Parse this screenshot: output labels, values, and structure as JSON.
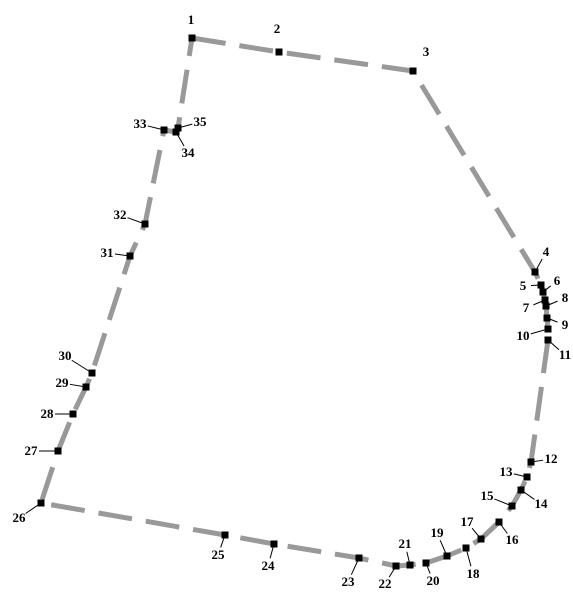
{
  "diagram": {
    "style": {
      "boundary_color": "#999999",
      "vertex_color": "#000000",
      "label_color": "#000000",
      "background": "#ffffff"
    },
    "vertices": [
      {
        "label": "1"
      },
      {
        "label": "2"
      },
      {
        "label": "3"
      },
      {
        "label": "4"
      },
      {
        "label": "5"
      },
      {
        "label": "6"
      },
      {
        "label": "7"
      },
      {
        "label": "8"
      },
      {
        "label": "9"
      },
      {
        "label": "10"
      },
      {
        "label": "11"
      },
      {
        "label": "12"
      },
      {
        "label": "13"
      },
      {
        "label": "14"
      },
      {
        "label": "15"
      },
      {
        "label": "16"
      },
      {
        "label": "17"
      },
      {
        "label": "18"
      },
      {
        "label": "19"
      },
      {
        "label": "20"
      },
      {
        "label": "21"
      },
      {
        "label": "22"
      },
      {
        "label": "23"
      },
      {
        "label": "24"
      },
      {
        "label": "25"
      },
      {
        "label": "26"
      },
      {
        "label": "27"
      },
      {
        "label": "28"
      },
      {
        "label": "29"
      },
      {
        "label": "30"
      },
      {
        "label": "31"
      },
      {
        "label": "32"
      },
      {
        "label": "33"
      },
      {
        "label": "34"
      },
      {
        "label": "35"
      }
    ]
  }
}
